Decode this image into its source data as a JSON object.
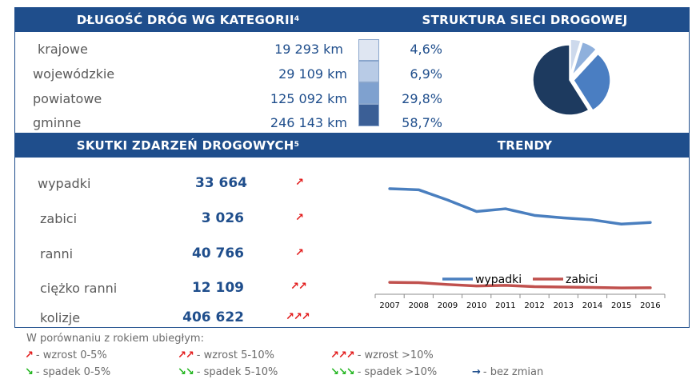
{
  "roads": {
    "title": "DŁUGOŚĆ DRÓG WG KATEGORII",
    "title_sup": "4",
    "rows": [
      {
        "label": "krajowe",
        "length": "19 293 km",
        "share": "4,6%"
      },
      {
        "label": "wojewódzkie",
        "length": "29 109 km",
        "share": "6,9%"
      },
      {
        "label": "powiatowe",
        "length": "125 092 km",
        "share": "29,8%"
      },
      {
        "label": "gminne",
        "length": "246 143 km",
        "share": "58,7%"
      }
    ],
    "swatch_colors": [
      "#dfe6f2",
      "#b8cbe6",
      "#7fa1cf",
      "#3b5f96"
    ]
  },
  "structure": {
    "title": "STRUKTURA SIECI DROGOWEJ"
  },
  "pie_data": {
    "type": "pie",
    "values": [
      4.6,
      6.9,
      29.8,
      58.7
    ],
    "colors": [
      "#cdd9ec",
      "#8fb0dc",
      "#4a7ec2",
      "#1d3a5f"
    ]
  },
  "effects": {
    "title": "SKUTKI ZDARZEŃ DROGOWYCH",
    "title_sup": "5",
    "rows": [
      {
        "label": "wypadki",
        "value": "33 664",
        "trend": "↗"
      },
      {
        "label": "zabici",
        "value": "3 026",
        "trend": "↗"
      },
      {
        "label": "ranni",
        "value": "40 766",
        "trend": "↗"
      },
      {
        "label": "ciężko ranni",
        "value": "12 109",
        "trend": "↗↗"
      },
      {
        "label": "kolizje",
        "value": "406 622",
        "trend": "↗↗↗"
      }
    ]
  },
  "trends": {
    "title": "TRENDY"
  },
  "chart_data": {
    "type": "line",
    "x": [
      "2007",
      "2008",
      "2009",
      "2010",
      "2011",
      "2012",
      "2013",
      "2014",
      "2015",
      "2016"
    ],
    "series": [
      {
        "name": "wypadki",
        "color": "#4a7fbf",
        "values": [
          49500,
          49000,
          44200,
          38800,
          40100,
          37000,
          35800,
          34900,
          32900,
          33664
        ]
      },
      {
        "name": "zabici",
        "color": "#c0504d",
        "values": [
          5580,
          5440,
          4570,
          3910,
          4190,
          3570,
          3360,
          3200,
          2940,
          3026
        ]
      }
    ],
    "grid": false,
    "legend": "inside-bottom",
    "ylim": [
      0,
      60000
    ]
  },
  "legend_box": {
    "heading": "W porównaniu z rokiem ubiegłym:",
    "items": [
      {
        "sym": "↗",
        "text": "- wzrost 0-5%",
        "kind": "up"
      },
      {
        "sym": "↗↗",
        "text": "- wzrost 5-10%",
        "kind": "up"
      },
      {
        "sym": "↗↗↗",
        "text": "- wzrost >10%",
        "kind": "up"
      },
      {
        "sym": "↘",
        "text": "- spadek 0-5%",
        "kind": "down"
      },
      {
        "sym": "↘↘",
        "text": "- spadek 5-10%",
        "kind": "down"
      },
      {
        "sym": "↘↘↘",
        "text": "- spadek >10%",
        "kind": "down"
      },
      {
        "sym": "→",
        "text": "- bez zmian",
        "kind": "flat"
      }
    ]
  }
}
